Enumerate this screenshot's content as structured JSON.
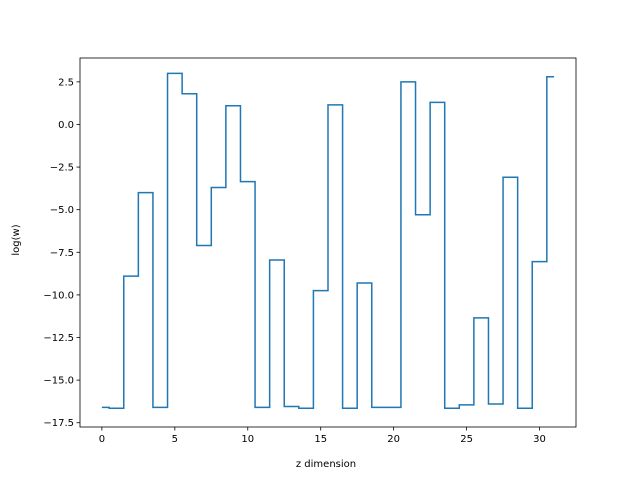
{
  "chart_data": {
    "type": "line",
    "drawstyle": "steps-mid",
    "title": "",
    "xlabel": "z dimension",
    "ylabel": "log(w)",
    "xlim": [
      -1.5,
      32.5
    ],
    "ylim": [
      -17.75,
      3.9
    ],
    "x_ticks": [
      0,
      5,
      10,
      15,
      20,
      25,
      30
    ],
    "x_tick_labels": [
      "0",
      "5",
      "10",
      "15",
      "20",
      "25",
      "30"
    ],
    "y_ticks": [
      2.5,
      0.0,
      -2.5,
      -5.0,
      -7.5,
      -10.0,
      -12.5,
      -15.0,
      -17.5
    ],
    "y_tick_labels": [
      "2.5",
      "0.0",
      "−2.5",
      "−5.0",
      "−7.5",
      "−10.0",
      "−12.5",
      "−15.0",
      "−17.5"
    ],
    "grid": false,
    "series": [
      {
        "color": "#1f77b4",
        "x": [
          0,
          1,
          2,
          3,
          4,
          5,
          6,
          7,
          8,
          9,
          10,
          11,
          12,
          13,
          14,
          15,
          16,
          17,
          18,
          19,
          20,
          21,
          22,
          23,
          24,
          25,
          26,
          27,
          28,
          29,
          30,
          31
        ],
        "y": [
          -16.6,
          -16.65,
          -8.9,
          -4.0,
          -16.6,
          3.0,
          1.8,
          -7.1,
          -3.7,
          1.1,
          -3.35,
          -16.6,
          -7.95,
          -16.55,
          -16.65,
          -9.75,
          1.15,
          -16.65,
          -9.3,
          -16.6,
          -16.6,
          2.5,
          -5.3,
          1.3,
          -16.65,
          -16.45,
          -11.35,
          -16.4,
          -3.1,
          -16.65,
          -8.05,
          2.8
        ]
      }
    ]
  }
}
